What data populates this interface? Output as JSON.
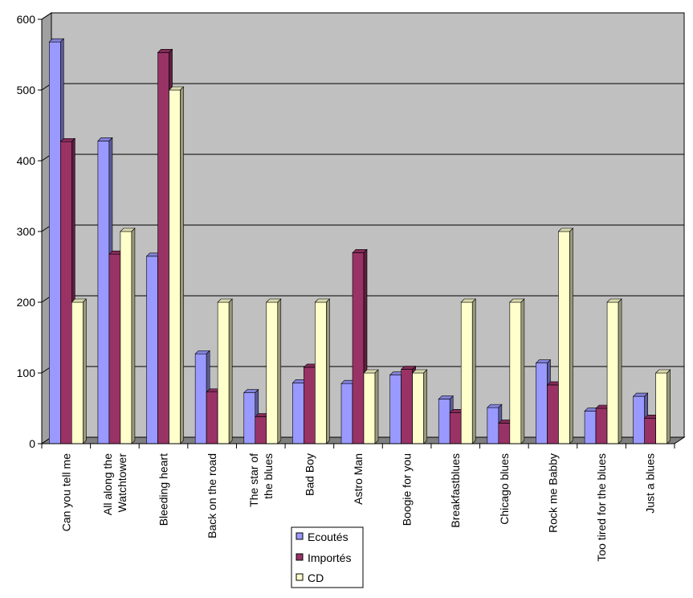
{
  "chart_data": {
    "type": "bar",
    "categories": [
      "Can you tell me",
      "All along the Watchtower",
      "Bleeding heart",
      "Back on the road",
      "The star of the blues",
      "Bad Boy",
      "Astro Man",
      "Boogie for you",
      "Breakfastblues",
      "Chicago blues",
      "Rock me Babby",
      "Too tired for the blues",
      "Just a blues"
    ],
    "series": [
      {
        "name": "Ecoutés",
        "values": [
          568,
          428,
          265,
          127,
          72,
          86,
          85,
          97,
          63,
          51,
          114,
          46,
          67
        ]
      },
      {
        "name": "Importés",
        "values": [
          427,
          268,
          553,
          73,
          38,
          108,
          270,
          105,
          44,
          29,
          83,
          50,
          36
        ]
      },
      {
        "name": "CD",
        "values": [
          200,
          300,
          500,
          200,
          200,
          200,
          100,
          100,
          200,
          200,
          300,
          200,
          100
        ]
      }
    ],
    "yticks": [
      "0",
      "100",
      "200",
      "300",
      "400",
      "500",
      "600"
    ],
    "ylim": [
      0,
      600
    ],
    "grid": true,
    "legend_position": "bottom-center",
    "colors": {
      "series": [
        "#9999ff",
        "#993366",
        "#ffffcc"
      ],
      "plot_background": "#c0c0c0",
      "floor": "#808080"
    }
  }
}
